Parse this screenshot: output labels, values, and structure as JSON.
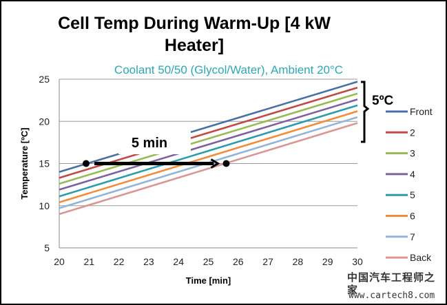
{
  "chart_data": {
    "type": "line",
    "title": "Cell Temp During Warm-Up [4 kW Heater]",
    "subtitle": "Coolant 50/50 (Glycol/Water), Ambient 20°C",
    "xlabel": "Time [min]",
    "ylabel": "Temperature [ºC]",
    "xlim": [
      20,
      30
    ],
    "ylim": [
      5,
      25
    ],
    "xticks": [
      20,
      21,
      22,
      23,
      24,
      25,
      26,
      27,
      28,
      29,
      30
    ],
    "yticks": [
      5,
      10,
      15,
      20,
      25
    ],
    "grid": "horizontal",
    "legend_position": "right",
    "x": [
      20,
      30
    ],
    "series": [
      {
        "name": "Front",
        "values": [
          14.0,
          24.7
        ],
        "color": "#4a6fa5"
      },
      {
        "name": "2",
        "values": [
          13.3,
          24.0
        ],
        "color": "#be4b48"
      },
      {
        "name": "3",
        "values": [
          12.6,
          23.3
        ],
        "color": "#98b954"
      },
      {
        "name": "4",
        "values": [
          11.9,
          22.6
        ],
        "color": "#7d60a0"
      },
      {
        "name": "5",
        "values": [
          11.1,
          21.9
        ],
        "color": "#2e9aaa"
      },
      {
        "name": "6",
        "values": [
          10.4,
          21.2
        ],
        "color": "#f08c3c"
      },
      {
        "name": "7",
        "values": [
          9.7,
          20.5
        ],
        "color": "#95b3d7"
      },
      {
        "name": "Back",
        "values": [
          9.0,
          19.8
        ],
        "color": "#d99694"
      }
    ],
    "annotations": {
      "time_span_label": "5 min",
      "time_span_from": [
        20.9,
        15
      ],
      "time_span_to": [
        25.6,
        15
      ],
      "delta_label": "5ºC"
    }
  },
  "watermark": {
    "line1": "中国汽车工程师之家",
    "line2": "www.cartech8.com"
  }
}
